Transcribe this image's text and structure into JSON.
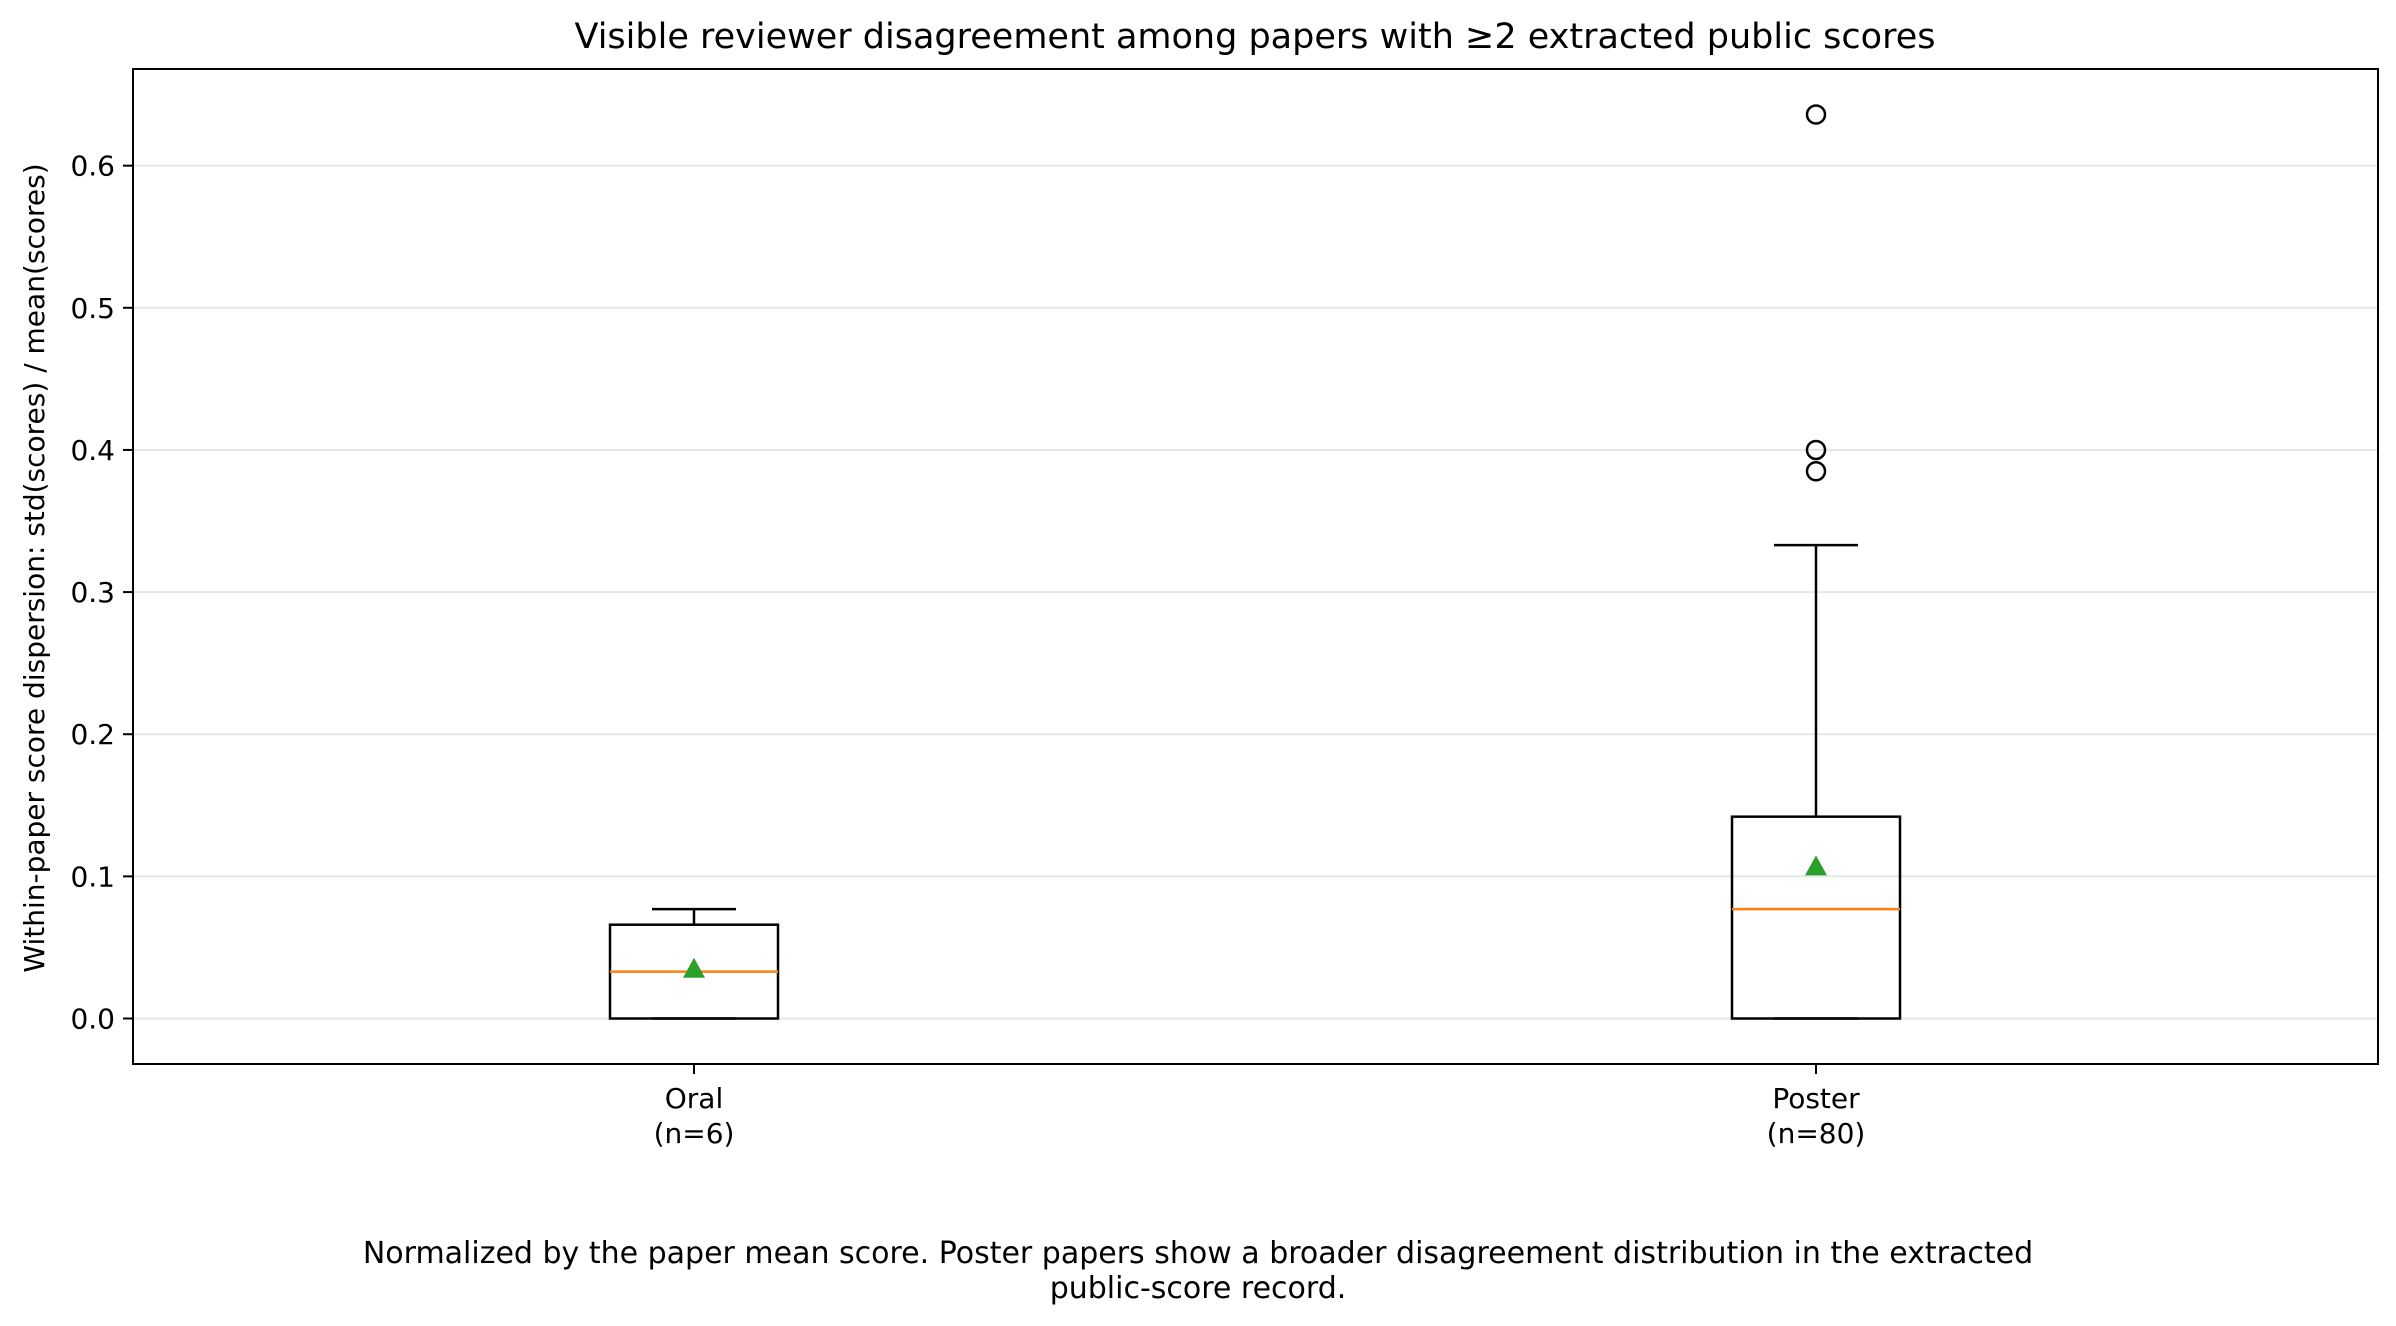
{
  "chart_data": {
    "type": "box",
    "title": "Visible reviewer disagreement among papers with ≥2 extracted public scores",
    "xlabel": "",
    "ylabel": "Within-paper score dispersion: std(scores) / mean(scores)",
    "ylim": [
      -0.032,
      0.668
    ],
    "yticks": [
      "0.0",
      "0.1",
      "0.2",
      "0.3",
      "0.4",
      "0.5",
      "0.6"
    ],
    "grid": "horizontal",
    "categories": [
      {
        "label": "Oral",
        "n_label": "(n=6)"
      },
      {
        "label": "Poster",
        "n_label": "(n=80)"
      }
    ],
    "boxes": [
      {
        "name": "Oral",
        "whisker_low": 0.0,
        "q1": 0.0,
        "median": 0.033,
        "mean": 0.035,
        "q3": 0.066,
        "whisker_high": 0.077,
        "outliers": []
      },
      {
        "name": "Poster",
        "whisker_low": 0.0,
        "q1": 0.0,
        "median": 0.077,
        "mean": 0.107,
        "q3": 0.142,
        "whisker_high": 0.333,
        "outliers": [
          0.385,
          0.4,
          0.636
        ]
      }
    ],
    "caption_lines": [
      "Normalized by the paper mean score. Poster papers show a broader disagreement distribution in the extracted",
      "public-score record."
    ],
    "colors": {
      "box": "#000000",
      "median": "#ff7f0e",
      "mean": "#2ca02c",
      "grid": "#e6e6e6"
    }
  }
}
